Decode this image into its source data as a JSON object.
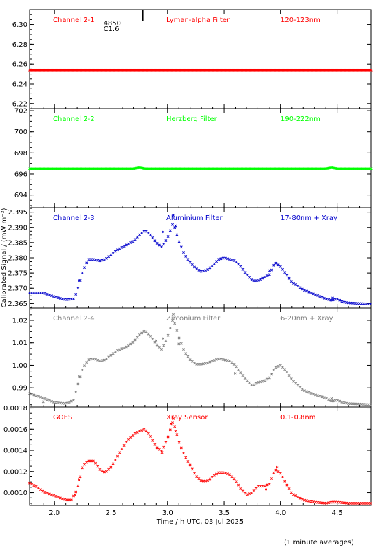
{
  "footer_note": "(1 minute averages)",
  "chart_data": {
    "type": "scatter",
    "xlabel": "Time / h UTC, 03 Jul 2025",
    "ylabel": "Calibrated Signal / (mW m⁻²)",
    "xlim": [
      1.78,
      4.8
    ],
    "xticks": [
      2.0,
      2.5,
      3.0,
      3.5,
      4.0,
      4.5
    ],
    "xticklabels": [
      "2.0",
      "2.5",
      "3.0",
      "3.5",
      "4.0",
      "4.5"
    ],
    "flare_marker": {
      "x": 2.78,
      "labels": [
        "4850",
        "C1.6"
      ]
    },
    "panels": [
      {
        "id": "channel-2-1",
        "name": "Channel 2-1",
        "filter": "Lyman-alpha Filter",
        "band": "120-123nm",
        "color": "#ff0000",
        "ylim": [
          6.215,
          6.315
        ],
        "yticks": [
          6.22,
          6.24,
          6.26,
          6.28,
          6.3
        ],
        "yticklabels": [
          "6.22",
          "6.24",
          "6.26",
          "6.28",
          "6.30"
        ],
        "points": [
          [
            1.78,
            6.254
          ],
          [
            2.0,
            6.254
          ],
          [
            2.5,
            6.254
          ],
          [
            3.0,
            6.254
          ],
          [
            3.5,
            6.254
          ],
          [
            4.0,
            6.254
          ],
          [
            4.5,
            6.254
          ],
          [
            4.8,
            6.254
          ]
        ],
        "scatter": [],
        "line_density": 1.0
      },
      {
        "id": "channel-2-2",
        "name": "Channel 2-2",
        "filter": "Herzberg Filter",
        "band": "190-222nm",
        "color": "#00ff00",
        "ylim": [
          692.8,
          702.2
        ],
        "yticks": [
          694,
          696,
          698,
          700,
          702
        ],
        "yticklabels": [
          "694",
          "696",
          "698",
          "700",
          "702"
        ],
        "points": [
          [
            1.78,
            696.5
          ],
          [
            2.7,
            696.5
          ],
          [
            2.75,
            696.6
          ],
          [
            2.8,
            696.5
          ],
          [
            4.4,
            696.5
          ],
          [
            4.45,
            696.6
          ],
          [
            4.5,
            696.5
          ],
          [
            4.8,
            696.5
          ]
        ],
        "scatter": [],
        "line_density": 1.0
      },
      {
        "id": "channel-2-3",
        "name": "Channel 2-3",
        "filter": "Aluminium Filter",
        "band": "17-80nm + Xray",
        "color": "#0000cc",
        "ylim": [
          2.3635,
          2.3965
        ],
        "yticks": [
          2.365,
          2.37,
          2.375,
          2.38,
          2.385,
          2.39,
          2.395
        ],
        "yticklabels": [
          "2.365",
          "2.370",
          "2.375",
          "2.380",
          "2.385",
          "2.390",
          "2.395"
        ],
        "points": [
          [
            1.78,
            2.3685
          ],
          [
            1.9,
            2.3685
          ],
          [
            2.0,
            2.3672
          ],
          [
            2.1,
            2.3662
          ],
          [
            2.17,
            2.3665
          ],
          [
            2.2,
            2.369
          ],
          [
            2.25,
            2.3755
          ],
          [
            2.3,
            2.3795
          ],
          [
            2.35,
            2.3795
          ],
          [
            2.4,
            2.379
          ],
          [
            2.45,
            2.3795
          ],
          [
            2.5,
            2.381
          ],
          [
            2.55,
            2.3825
          ],
          [
            2.6,
            2.3835
          ],
          [
            2.65,
            2.3845
          ],
          [
            2.7,
            2.3855
          ],
          [
            2.75,
            2.3875
          ],
          [
            2.8,
            2.389
          ],
          [
            2.85,
            2.3875
          ],
          [
            2.9,
            2.385
          ],
          [
            2.95,
            2.3835
          ],
          [
            3.0,
            2.3865
          ],
          [
            3.05,
            2.3915
          ],
          [
            3.1,
            2.3855
          ],
          [
            3.15,
            2.381
          ],
          [
            3.2,
            2.3785
          ],
          [
            3.25,
            2.3765
          ],
          [
            3.3,
            2.3755
          ],
          [
            3.35,
            2.376
          ],
          [
            3.4,
            2.3775
          ],
          [
            3.45,
            2.3795
          ],
          [
            3.5,
            2.38
          ],
          [
            3.55,
            2.3795
          ],
          [
            3.6,
            2.379
          ],
          [
            3.65,
            2.377
          ],
          [
            3.7,
            2.3745
          ],
          [
            3.75,
            2.3725
          ],
          [
            3.8,
            2.3725
          ],
          [
            3.85,
            2.3735
          ],
          [
            3.9,
            2.3745
          ],
          [
            3.95,
            2.3785
          ],
          [
            4.0,
            2.377
          ],
          [
            4.05,
            2.3745
          ],
          [
            4.1,
            2.372
          ],
          [
            4.2,
            2.3695
          ],
          [
            4.3,
            2.368
          ],
          [
            4.4,
            2.3665
          ],
          [
            4.45,
            2.366
          ],
          [
            4.5,
            2.3665
          ],
          [
            4.55,
            2.3655
          ],
          [
            4.6,
            2.3652
          ],
          [
            4.7,
            2.365
          ],
          [
            4.8,
            2.3648
          ]
        ],
        "scatter": [
          [
            2.22,
            2.3725
          ],
          [
            2.96,
            2.3885
          ],
          [
            3.05,
            2.394
          ],
          [
            3.07,
            2.3905
          ],
          [
            3.9,
            2.3758
          ],
          [
            4.46,
            2.3668
          ]
        ],
        "line_density": 0.55
      },
      {
        "id": "channel-2-4",
        "name": "Channel 2-4",
        "filter": "Zirconium Filter",
        "band": "6-20nm + Xray",
        "color": "#808080",
        "ylim": [
          0.9815,
          1.0255
        ],
        "yticks": [
          0.99,
          1.0,
          1.01,
          1.02
        ],
        "yticklabels": [
          "0.99",
          "1.00",
          "1.01",
          "1.02"
        ],
        "points": [
          [
            1.78,
            0.9875
          ],
          [
            1.9,
            0.9855
          ],
          [
            2.0,
            0.9835
          ],
          [
            2.1,
            0.983
          ],
          [
            2.17,
            0.9845
          ],
          [
            2.2,
            0.9905
          ],
          [
            2.25,
            0.9985
          ],
          [
            2.3,
            1.0025
          ],
          [
            2.35,
            1.003
          ],
          [
            2.4,
            1.002
          ],
          [
            2.45,
            1.0025
          ],
          [
            2.5,
            1.0045
          ],
          [
            2.55,
            1.0065
          ],
          [
            2.6,
            1.0075
          ],
          [
            2.65,
            1.0085
          ],
          [
            2.7,
            1.0105
          ],
          [
            2.75,
            1.0135
          ],
          [
            2.8,
            1.0155
          ],
          [
            2.85,
            1.013
          ],
          [
            2.9,
            1.0095
          ],
          [
            2.95,
            1.007
          ],
          [
            3.0,
            1.0125
          ],
          [
            3.05,
            1.021
          ],
          [
            3.1,
            1.0125
          ],
          [
            3.15,
            1.006
          ],
          [
            3.2,
            1.0025
          ],
          [
            3.25,
            1.0005
          ],
          [
            3.3,
            1.0005
          ],
          [
            3.35,
            1.001
          ],
          [
            3.4,
            1.002
          ],
          [
            3.45,
            1.003
          ],
          [
            3.5,
            1.0025
          ],
          [
            3.55,
            1.002
          ],
          [
            3.6,
            1.0
          ],
          [
            3.65,
            0.9965
          ],
          [
            3.7,
            0.9935
          ],
          [
            3.75,
            0.991
          ],
          [
            3.8,
            0.9925
          ],
          [
            3.85,
            0.993
          ],
          [
            3.9,
            0.9945
          ],
          [
            3.95,
            0.999
          ],
          [
            4.0,
            1.0
          ],
          [
            4.05,
            0.9975
          ],
          [
            4.1,
            0.9935
          ],
          [
            4.2,
            0.989
          ],
          [
            4.3,
            0.987
          ],
          [
            4.4,
            0.9855
          ],
          [
            4.45,
            0.984
          ],
          [
            4.5,
            0.9845
          ],
          [
            4.55,
            0.9835
          ],
          [
            4.6,
            0.983
          ],
          [
            4.7,
            0.9828
          ],
          [
            4.8,
            0.9825
          ]
        ],
        "scatter": [
          [
            1.9,
            0.9838
          ],
          [
            2.22,
            0.995
          ],
          [
            2.9,
            1.011
          ],
          [
            2.96,
            1.012
          ],
          [
            3.05,
            1.0228
          ],
          [
            3.1,
            1.0095
          ],
          [
            3.6,
            0.9965
          ],
          [
            3.92,
            0.996
          ],
          [
            4.45,
            0.9852
          ]
        ],
        "line_density": 0.55
      },
      {
        "id": "goes",
        "name": "GOES",
        "filter": "Xray Sensor",
        "band": "0.1-0.8nm",
        "color": "#ff0000",
        "ylim": [
          0.00088,
          0.00181
        ],
        "yticks": [
          0.001,
          0.0012,
          0.0014,
          0.0016,
          0.0018
        ],
        "yticklabels": [
          "0.0010",
          "0.0012",
          "0.0014",
          "0.0016",
          "0.0018"
        ],
        "points": [
          [
            1.78,
            0.00109
          ],
          [
            1.85,
            0.00105
          ],
          [
            1.9,
            0.00101
          ],
          [
            2.0,
            0.00097
          ],
          [
            2.1,
            0.00093
          ],
          [
            2.15,
            0.00093
          ],
          [
            2.2,
            0.00103
          ],
          [
            2.25,
            0.00125
          ],
          [
            2.3,
            0.0013
          ],
          [
            2.35,
            0.0013
          ],
          [
            2.4,
            0.00122
          ],
          [
            2.45,
            0.00119
          ],
          [
            2.5,
            0.00124
          ],
          [
            2.55,
            0.00133
          ],
          [
            2.6,
            0.00142
          ],
          [
            2.65,
            0.0015
          ],
          [
            2.7,
            0.00155
          ],
          [
            2.75,
            0.00158
          ],
          [
            2.8,
            0.0016
          ],
          [
            2.85,
            0.00153
          ],
          [
            2.9,
            0.00143
          ],
          [
            2.95,
            0.00139
          ],
          [
            3.0,
            0.00151
          ],
          [
            3.05,
            0.00168
          ],
          [
            3.1,
            0.00148
          ],
          [
            3.15,
            0.00135
          ],
          [
            3.2,
            0.00126
          ],
          [
            3.25,
            0.00116
          ],
          [
            3.3,
            0.00111
          ],
          [
            3.35,
            0.00111
          ],
          [
            3.4,
            0.00115
          ],
          [
            3.45,
            0.00119
          ],
          [
            3.5,
            0.00119
          ],
          [
            3.55,
            0.00117
          ],
          [
            3.6,
            0.00112
          ],
          [
            3.65,
            0.00103
          ],
          [
            3.7,
            0.00098
          ],
          [
            3.75,
            0.001
          ],
          [
            3.8,
            0.00106
          ],
          [
            3.85,
            0.00106
          ],
          [
            3.9,
            0.00108
          ],
          [
            3.95,
            0.00122
          ],
          [
            4.0,
            0.00118
          ],
          [
            4.05,
            0.00108
          ],
          [
            4.1,
            0.00099
          ],
          [
            4.2,
            0.00093
          ],
          [
            4.3,
            0.00091
          ],
          [
            4.4,
            0.0009
          ],
          [
            4.45,
            0.00091
          ],
          [
            4.5,
            0.00091
          ],
          [
            4.6,
            0.0009
          ],
          [
            4.7,
            0.0009
          ],
          [
            4.8,
            0.0009
          ]
        ],
        "scatter": [
          [
            2.18,
            0.00098
          ],
          [
            2.22,
            0.00112
          ],
          [
            2.95,
            0.00138
          ],
          [
            3.03,
            0.00165
          ],
          [
            3.05,
            0.0017
          ],
          [
            3.07,
            0.00158
          ],
          [
            3.87,
            0.00103
          ],
          [
            3.97,
            0.00124
          ]
        ],
        "line_density": 0.55
      }
    ]
  }
}
